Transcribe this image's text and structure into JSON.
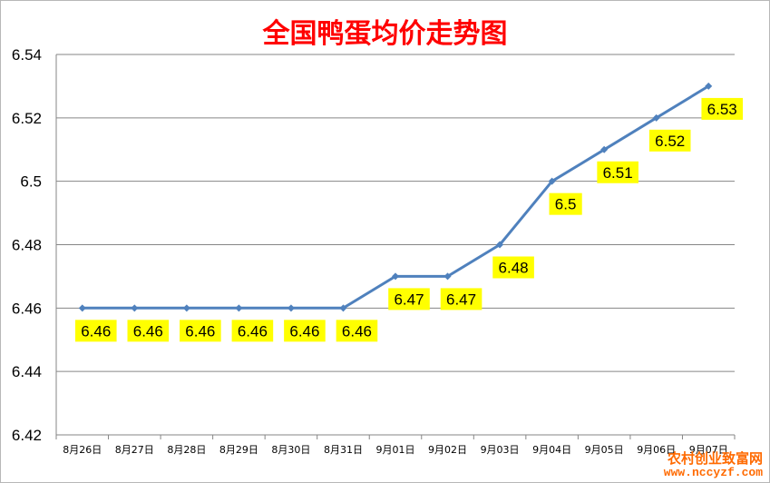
{
  "chart_data": {
    "type": "line",
    "title": "全国鸭蛋均价走势图",
    "categories": [
      "8月26日",
      "8月27日",
      "8月28日",
      "8月29日",
      "8月30日",
      "8月31日",
      "9月01日",
      "9月02日",
      "9月03日",
      "9月04日",
      "9月05日",
      "9月06日",
      "9月07日"
    ],
    "series": [
      {
        "values": [
          6.46,
          6.46,
          6.46,
          6.46,
          6.46,
          6.46,
          6.47,
          6.47,
          6.48,
          6.5,
          6.51,
          6.52,
          6.53
        ]
      }
    ],
    "data_labels": [
      "6.46",
      "6.46",
      "6.46",
      "6.46",
      "6.46",
      "6.46",
      "6.47",
      "6.47",
      "6.48",
      "6.5",
      "6.51",
      "6.52",
      "6.53"
    ],
    "yticks": [
      "6.42",
      "6.44",
      "6.46",
      "6.48",
      "6.5",
      "6.52",
      "6.54"
    ],
    "ylim": [
      6.42,
      6.54
    ],
    "grid": true,
    "legend": "none",
    "colors": {
      "line": "#4f81bd",
      "label_bg": "#ffff00",
      "title": "#ff0000",
      "grid": "#868686"
    }
  },
  "watermark": {
    "name": "农村创业致富网",
    "url": "www.nccyzf.com"
  }
}
